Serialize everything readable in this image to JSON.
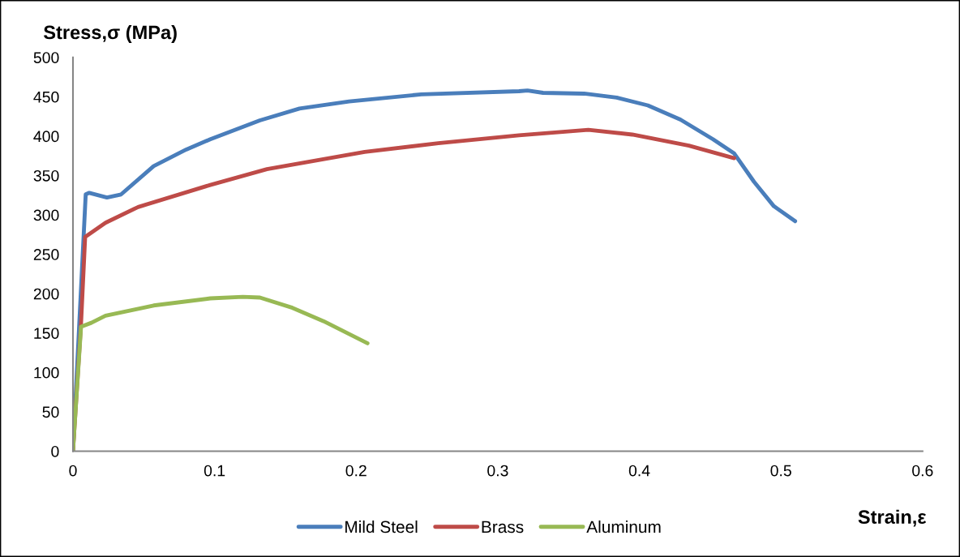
{
  "chart_data": {
    "type": "line",
    "ylabel": "Stress,σ (MPa)",
    "xlabel": "Strain,ε",
    "xlim": [
      0,
      0.6
    ],
    "xticks": [
      0,
      0.1,
      0.2,
      0.3,
      0.4,
      0.5,
      0.6
    ],
    "ylim": [
      0,
      500
    ],
    "yticks": [
      0,
      50,
      100,
      150,
      200,
      250,
      300,
      350,
      400,
      450,
      500
    ],
    "grid": false,
    "legend": "bottom",
    "marker": "none",
    "line_style": "solid",
    "series": [
      {
        "name": "Mild Steel",
        "color": "#4a7ebb",
        "x": [
          0,
          0.009,
          0.0115,
          0.024,
          0.034,
          0.057,
          0.08,
          0.097,
          0.132,
          0.16,
          0.195,
          0.246,
          0.315,
          0.321,
          0.332,
          0.361,
          0.384,
          0.406,
          0.429,
          0.452,
          0.467,
          0.481,
          0.495,
          0.51
        ],
        "values": [
          0,
          326,
          328,
          322,
          326,
          362,
          383,
          396,
          420,
          435,
          444,
          453,
          457,
          458,
          455,
          454,
          449,
          439,
          421,
          396,
          378,
          342,
          311,
          292
        ]
      },
      {
        "name": "Brass",
        "color": "#be4b48",
        "x": [
          0,
          0.0057,
          0.0086,
          0.023,
          0.046,
          0.097,
          0.137,
          0.206,
          0.258,
          0.315,
          0.364,
          0.395,
          0.435,
          0.467
        ],
        "values": [
          0,
          162,
          272,
          290,
          310,
          338,
          358,
          380,
          391,
          401,
          408,
          402,
          388,
          372
        ]
      },
      {
        "name": "Aluminum",
        "color": "#98b954",
        "x": [
          0,
          0.0057,
          0.013,
          0.023,
          0.057,
          0.097,
          0.12,
          0.132,
          0.155,
          0.177,
          0.208
        ],
        "values": [
          0,
          158,
          163,
          172,
          185,
          194,
          196,
          195,
          182,
          165,
          137
        ]
      }
    ]
  }
}
